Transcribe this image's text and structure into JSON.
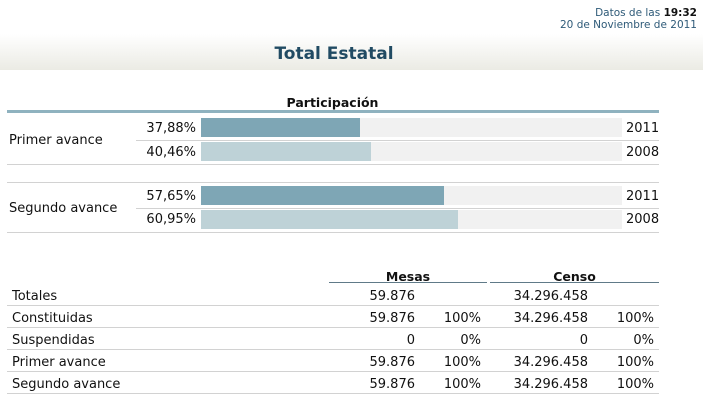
{
  "header": {
    "datos_prefix": "Datos de las",
    "time": "19:32",
    "date": "20 de Noviembre de 2011"
  },
  "title": "Total Estatal",
  "participacion": {
    "heading": "Participación",
    "bar_colors": {
      "current": "#7ea6b5",
      "previous": "#bed2d7"
    },
    "groups": [
      {
        "label": "Primer avance",
        "rows": [
          {
            "pct": "37,88%",
            "value": 37.88,
            "year": "2011"
          },
          {
            "pct": "40,46%",
            "value": 40.46,
            "year": "2008"
          }
        ]
      },
      {
        "label": "Segundo avance",
        "rows": [
          {
            "pct": "57,65%",
            "value": 57.65,
            "year": "2011"
          },
          {
            "pct": "60,95%",
            "value": 60.95,
            "year": "2008"
          }
        ]
      }
    ]
  },
  "table": {
    "headers": {
      "mesas": "Mesas",
      "censo": "Censo"
    },
    "rows": [
      {
        "label": "Totales",
        "mesas": "59.876",
        "mesas_pct": "",
        "censo": "34.296.458",
        "censo_pct": ""
      },
      {
        "label": "Constituidas",
        "mesas": "59.876",
        "mesas_pct": "100%",
        "censo": "34.296.458",
        "censo_pct": "100%"
      },
      {
        "label": "Suspendidas",
        "mesas": "0",
        "mesas_pct": "0%",
        "censo": "0",
        "censo_pct": "0%"
      },
      {
        "label": "Primer avance",
        "mesas": "59.876",
        "mesas_pct": "100%",
        "censo": "34.296.458",
        "censo_pct": "100%"
      },
      {
        "label": "Segundo avance",
        "mesas": "59.876",
        "mesas_pct": "100%",
        "censo": "34.296.458",
        "censo_pct": "100%"
      }
    ]
  }
}
